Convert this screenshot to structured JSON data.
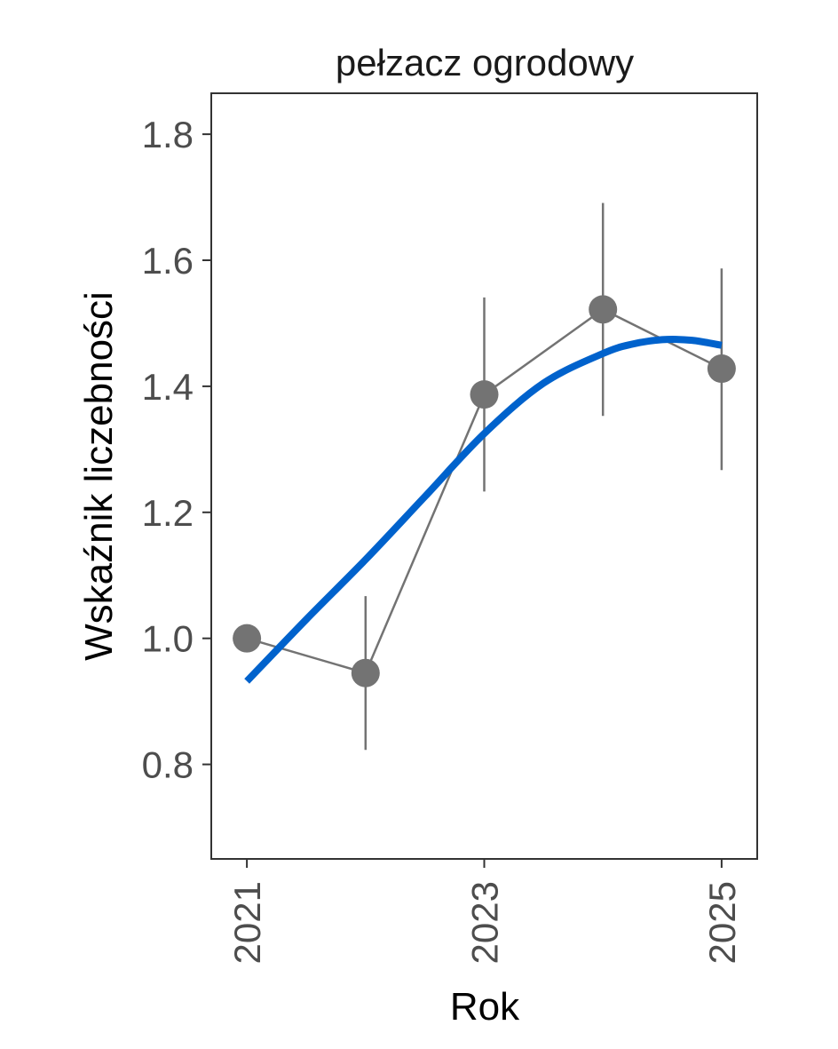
{
  "chart_data": {
    "type": "line",
    "title": "pełzacz ogrodowy",
    "xlabel": "Rok",
    "ylabel": "Wskaźnik liczebności",
    "xlim": [
      2020.7,
      2025.3
    ],
    "ylim": [
      0.65,
      1.865
    ],
    "x_ticks": [
      2021,
      2023,
      2025
    ],
    "y_ticks": [
      0.8,
      1.0,
      1.2,
      1.4,
      1.6,
      1.8
    ],
    "y_tick_labels": [
      "0.8",
      "1.0",
      "1.2",
      "1.4",
      "1.6",
      "1.8"
    ],
    "series": [
      {
        "kind": "points-with-errorbars",
        "x": [
          2021,
          2022,
          2023,
          2024,
          2025
        ],
        "y": [
          1.0,
          0.945,
          1.387,
          1.522,
          1.428
        ],
        "lower": [
          null,
          0.823,
          1.233,
          1.353,
          1.267
        ],
        "upper": [
          null,
          1.067,
          1.541,
          1.691,
          1.587
        ],
        "color": "#737373"
      },
      {
        "kind": "smooth-trend",
        "x": [
          2021,
          2021.5,
          2022,
          2022.5,
          2023,
          2023.5,
          2024,
          2024.25,
          2024.5,
          2024.75,
          2025
        ],
        "y": [
          0.932,
          1.03,
          1.125,
          1.225,
          1.325,
          1.405,
          1.452,
          1.467,
          1.474,
          1.473,
          1.465
        ],
        "color": "#0062cc"
      }
    ],
    "grid": false,
    "legend": "none"
  }
}
